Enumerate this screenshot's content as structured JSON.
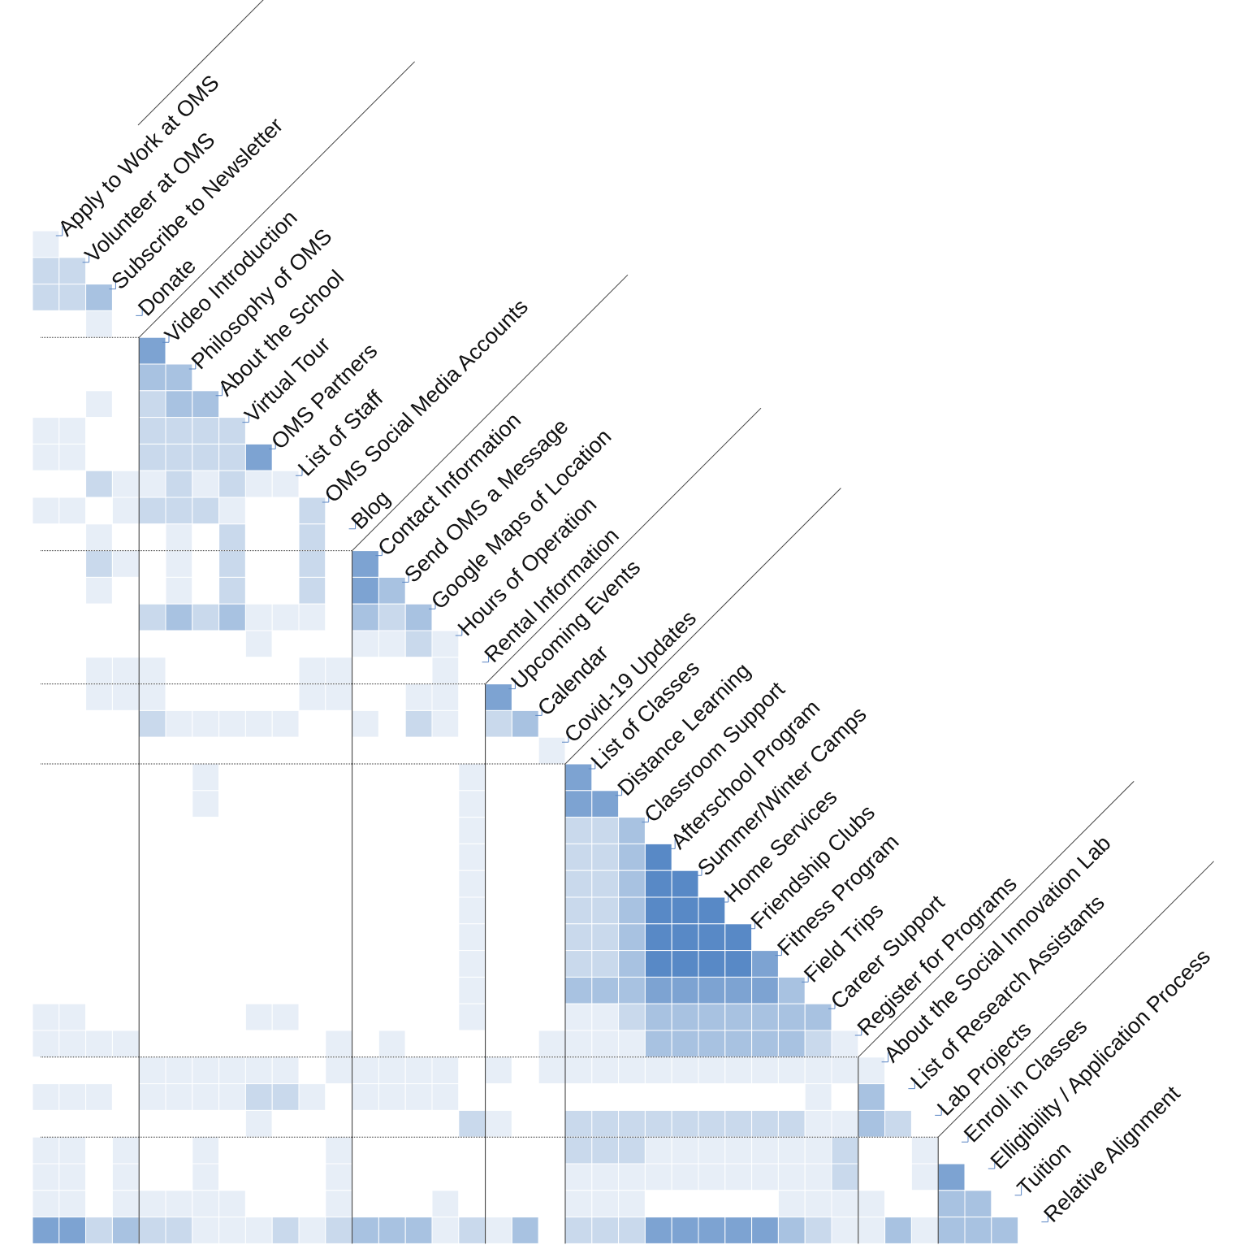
{
  "labels": [
    "Apply to Work at OMS",
    "Volunteer at OMS",
    "Subscribe to Newsletter",
    "Donate",
    "Video Introduction",
    "Philosophy of OMS",
    "About the School",
    "Virtual Tour",
    "OMS Partners",
    "List of Staff",
    "OMS Social Media Accounts",
    "Blog",
    "Contact Information",
    "Send OMS a Message",
    "Google Maps of Location",
    "Hours of Operation",
    "Rental Information",
    "Upcoming Events",
    "Calendar",
    "Covid-19 Updates",
    "List of Classes",
    "Distance Learning",
    "Classroom Support",
    "Afterschool Program",
    "Summer/Winter Camps",
    "Home Services",
    "Friendship Clubs",
    "Fitness Program",
    "Field Trips",
    "Career Support",
    "Register for Programs",
    "About the Social Innovation Lab",
    "List of Research Assistants",
    "Lab Projects",
    "Enroll in Classes",
    "Elligibility / Application Process",
    "Tuition",
    "Relative Alignment"
  ],
  "groups": [
    {
      "start": 0,
      "end": 3
    },
    {
      "start": 4,
      "end": 11
    },
    {
      "start": 12,
      "end": 16
    },
    {
      "start": 17,
      "end": 19
    },
    {
      "start": 20,
      "end": 30
    },
    {
      "start": 31,
      "end": 33
    },
    {
      "start": 34,
      "end": 36
    }
  ],
  "color_scale": {
    "low": "#ffffff",
    "high": "#4a7fc1"
  },
  "matrix_rows": [
    [
      1
    ],
    [
      2,
      2
    ],
    [
      2,
      2,
      3
    ],
    [
      0,
      0,
      1,
      0
    ],
    [
      0,
      0,
      0,
      0,
      4
    ],
    [
      0,
      0,
      0,
      0,
      3,
      3
    ],
    [
      0,
      0,
      1,
      0,
      2,
      3,
      3
    ],
    [
      1,
      1,
      0,
      0,
      2,
      2,
      2,
      2
    ],
    [
      1,
      1,
      0,
      0,
      2,
      2,
      2,
      2,
      4
    ],
    [
      0,
      0,
      2,
      1,
      1,
      2,
      1,
      2,
      1,
      1
    ],
    [
      1,
      1,
      0,
      1,
      2,
      2,
      2,
      1,
      0,
      0,
      2
    ],
    [
      0,
      0,
      1,
      0,
      0,
      1,
      0,
      2,
      0,
      0,
      2,
      0
    ],
    [
      0,
      0,
      2,
      1,
      0,
      1,
      0,
      2,
      0,
      0,
      2,
      0,
      4
    ],
    [
      0,
      0,
      1,
      0,
      0,
      1,
      0,
      2,
      0,
      0,
      2,
      0,
      4,
      3
    ],
    [
      0,
      0,
      0,
      0,
      2,
      3,
      2,
      3,
      1,
      1,
      1,
      0,
      3,
      2,
      3
    ],
    [
      0,
      0,
      0,
      0,
      0,
      0,
      0,
      0,
      1,
      0,
      0,
      0,
      1,
      1,
      2,
      1
    ],
    [
      0,
      0,
      1,
      1,
      1,
      0,
      0,
      0,
      0,
      0,
      1,
      1,
      0,
      0,
      0,
      1,
      0
    ],
    [
      0,
      0,
      1,
      1,
      1,
      0,
      0,
      0,
      0,
      0,
      1,
      1,
      0,
      0,
      1,
      1,
      0,
      4
    ],
    [
      0,
      0,
      0,
      0,
      2,
      1,
      1,
      1,
      1,
      1,
      0,
      0,
      1,
      0,
      2,
      1,
      0,
      2,
      3
    ],
    [
      0,
      0,
      0,
      0,
      0,
      0,
      0,
      0,
      0,
      0,
      0,
      0,
      0,
      0,
      0,
      0,
      0,
      0,
      0,
      1
    ],
    [
      0,
      0,
      0,
      0,
      0,
      0,
      1,
      0,
      0,
      0,
      0,
      0,
      0,
      0,
      0,
      0,
      1,
      0,
      0,
      0,
      4
    ],
    [
      0,
      0,
      0,
      0,
      0,
      0,
      1,
      0,
      0,
      0,
      0,
      0,
      0,
      0,
      0,
      0,
      1,
      0,
      0,
      0,
      4,
      4
    ],
    [
      0,
      0,
      0,
      0,
      0,
      0,
      0,
      0,
      0,
      0,
      0,
      0,
      0,
      0,
      0,
      0,
      1,
      0,
      0,
      0,
      2,
      2,
      3
    ],
    [
      0,
      0,
      0,
      0,
      0,
      0,
      0,
      0,
      0,
      0,
      0,
      0,
      0,
      0,
      0,
      0,
      1,
      0,
      0,
      0,
      2,
      2,
      3,
      5
    ],
    [
      0,
      0,
      0,
      0,
      0,
      0,
      0,
      0,
      0,
      0,
      0,
      0,
      0,
      0,
      0,
      0,
      1,
      0,
      0,
      0,
      2,
      2,
      3,
      5,
      5
    ],
    [
      0,
      0,
      0,
      0,
      0,
      0,
      0,
      0,
      0,
      0,
      0,
      0,
      0,
      0,
      0,
      0,
      1,
      0,
      0,
      0,
      2,
      2,
      3,
      5,
      5,
      5
    ],
    [
      0,
      0,
      0,
      0,
      0,
      0,
      0,
      0,
      0,
      0,
      0,
      0,
      0,
      0,
      0,
      0,
      1,
      0,
      0,
      0,
      2,
      2,
      3,
      5,
      5,
      5,
      5
    ],
    [
      0,
      0,
      0,
      0,
      0,
      0,
      0,
      0,
      0,
      0,
      0,
      0,
      0,
      0,
      0,
      0,
      1,
      0,
      0,
      0,
      2,
      2,
      3,
      5,
      5,
      5,
      5,
      4
    ],
    [
      0,
      0,
      0,
      0,
      0,
      0,
      0,
      0,
      0,
      0,
      0,
      0,
      0,
      0,
      0,
      0,
      1,
      0,
      0,
      0,
      3,
      3,
      3,
      4,
      4,
      4,
      4,
      4,
      3
    ],
    [
      1,
      1,
      0,
      0,
      0,
      0,
      0,
      0,
      1,
      1,
      0,
      0,
      0,
      0,
      0,
      0,
      1,
      0,
      0,
      0,
      1,
      1,
      2,
      3,
      3,
      3,
      3,
      3,
      3,
      3
    ],
    [
      1,
      1,
      1,
      1,
      0,
      0,
      0,
      0,
      0,
      0,
      0,
      1,
      0,
      1,
      0,
      0,
      0,
      0,
      0,
      1,
      1,
      1,
      1,
      3,
      3,
      3,
      3,
      3,
      3,
      2,
      1
    ],
    [
      0,
      0,
      0,
      0,
      1,
      1,
      1,
      1,
      1,
      1,
      0,
      1,
      1,
      1,
      1,
      1,
      0,
      1,
      0,
      1,
      1,
      1,
      1,
      1,
      1,
      1,
      1,
      1,
      1,
      1,
      1,
      1
    ],
    [
      1,
      1,
      1,
      0,
      1,
      1,
      1,
      1,
      2,
      2,
      1,
      0,
      1,
      1,
      1,
      1,
      0,
      0,
      0,
      0,
      0,
      0,
      0,
      0,
      0,
      0,
      0,
      0,
      0,
      1,
      0,
      3
    ],
    [
      0,
      0,
      0,
      0,
      0,
      0,
      0,
      0,
      1,
      0,
      0,
      0,
      0,
      0,
      0,
      0,
      2,
      1,
      0,
      0,
      2,
      2,
      2,
      2,
      2,
      2,
      2,
      2,
      2,
      1,
      1,
      3,
      2
    ],
    [
      1,
      1,
      0,
      1,
      0,
      0,
      1,
      0,
      0,
      0,
      0,
      1,
      0,
      0,
      0,
      0,
      0,
      0,
      0,
      0,
      2,
      2,
      2,
      1,
      1,
      1,
      1,
      1,
      1,
      1,
      2,
      0,
      0,
      1
    ],
    [
      1,
      1,
      0,
      1,
      0,
      0,
      1,
      0,
      0,
      0,
      0,
      1,
      0,
      0,
      0,
      0,
      0,
      0,
      0,
      0,
      1,
      1,
      1,
      1,
      1,
      1,
      1,
      1,
      1,
      1,
      2,
      0,
      0,
      1,
      4
    ],
    [
      1,
      1,
      0,
      1,
      1,
      1,
      1,
      1,
      0,
      0,
      0,
      1,
      0,
      0,
      0,
      1,
      0,
      0,
      0,
      0,
      1,
      1,
      1,
      0,
      0,
      0,
      0,
      0,
      1,
      1,
      1,
      1,
      0,
      0,
      3,
      3
    ],
    [
      4,
      4,
      2,
      3,
      2,
      2,
      1,
      1,
      1,
      2,
      1,
      2,
      3,
      3,
      3,
      1,
      2,
      1,
      3,
      0,
      2,
      2,
      2,
      4,
      4,
      4,
      4,
      4,
      3,
      2,
      1,
      1,
      3,
      1,
      3,
      3,
      3
    ]
  ]
}
